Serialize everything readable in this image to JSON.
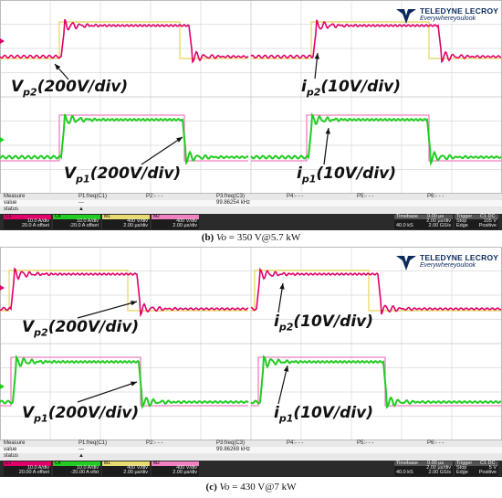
{
  "chart_data": [
    {
      "type": "line",
      "caption_label": "(b)",
      "caption_var": "Vo",
      "caption_rest": "= 350 V@5.7 kW",
      "series": [
        {
          "name": "Vp2(200V/div)",
          "color": "#e0006a"
        },
        {
          "name": "ip2(10V/div)",
          "color": "#e8dc70"
        },
        {
          "name": "Vp1(200V/div)",
          "color": "#22cc22"
        },
        {
          "name": "ip1(10V/div)",
          "color": "#f080c0"
        }
      ],
      "annotations": {
        "vp2": {
          "base": "V",
          "sub": "p2",
          "rest": "(200V/div)"
        },
        "ip2": {
          "base": "i",
          "sub": "p2",
          "rest": "(10V/div)"
        },
        "vp1": {
          "base": "V",
          "sub": "p1",
          "rest": "(200V/div)"
        },
        "ip1": {
          "base": "i",
          "sub": "p1",
          "rest": "(10V/div)"
        }
      },
      "measure": {
        "row_labels": [
          "Measure",
          "value",
          "status"
        ],
        "params": [
          "P1:freq(C1)",
          "P2:- - -",
          "P3:freq(C3)",
          "P4:- - -",
          "P5:- - -",
          "P6:- - -"
        ],
        "value_p1": "---",
        "value_p3": "99.86254 kHz",
        "status_mark": "▲"
      },
      "channels": [
        {
          "tag": "C1",
          "line1": "10.0 A/div",
          "line2": "20.0 A offset",
          "color": "#e0006a"
        },
        {
          "tag": "C4",
          "line1": "10.0 A/div",
          "line2": "-20.0 A offset",
          "color": "#22cc22"
        },
        {
          "tag": "M1",
          "line1": "400 V/div",
          "line2": "2.00 µs/div",
          "color": "#e8dc70"
        },
        {
          "tag": "M2",
          "line1": "400 V/div",
          "line2": "2.00 µs/div",
          "color": "#f080c0"
        }
      ],
      "timebase": {
        "title": "Timebase",
        "offset": "0.00 µs",
        "per_div": "2.00 µs/div",
        "samples": "40.0 kS",
        "rate": "2.00 GS/s"
      },
      "trigger": {
        "title": "Trigger",
        "coupling": "C1 DC",
        "mode": "Stop",
        "level": "105 V",
        "type": "Edge",
        "slope": "Positive"
      }
    },
    {
      "type": "line",
      "caption_label": "(c)",
      "caption_var": "Vo",
      "caption_rest": "= 430 V@7 kW",
      "series": [
        {
          "name": "Vp2(200V/div)",
          "color": "#e0006a"
        },
        {
          "name": "ip2(10V/div)",
          "color": "#e8dc70"
        },
        {
          "name": "Vp1(200V/div)",
          "color": "#22cc22"
        },
        {
          "name": "ip1(10V/div)",
          "color": "#f080c0"
        }
      ],
      "annotations": {
        "vp2": {
          "base": "V",
          "sub": "p2",
          "rest": "(200V/div)"
        },
        "ip2": {
          "base": "i",
          "sub": "p2",
          "rest": "(10V/div)"
        },
        "vp1": {
          "base": "V",
          "sub": "p1",
          "rest": "(200V/div)"
        },
        "ip1": {
          "base": "i",
          "sub": "p1",
          "rest": "(10V/div)"
        }
      },
      "measure": {
        "row_labels": [
          "Measure",
          "value",
          "status"
        ],
        "params": [
          "P1:freq(C1)",
          "P2:- - -",
          "P3:freq(C3)",
          "P4:- - -",
          "P5:- - -",
          "P6:- - -"
        ],
        "value_p1": "---",
        "value_p3": "99.86269 kHz",
        "status_mark": "▲"
      },
      "channels": [
        {
          "tag": "C1",
          "line1": "10.0 A/div",
          "line2": "20.00 A offset",
          "color": "#e0006a"
        },
        {
          "tag": "C4",
          "line1": "10.0 A/div",
          "line2": "-20.00 A ofst",
          "color": "#22cc22"
        },
        {
          "tag": "M1",
          "line1": "400 V/div",
          "line2": "2.00 µs/div",
          "color": "#e8dc70"
        },
        {
          "tag": "M2",
          "line1": "400 V/div",
          "line2": "2.00 µs/div",
          "color": "#f080c0"
        }
      ],
      "timebase": {
        "title": "Timebase",
        "offset": "0.00 µs",
        "per_div": "2.00 µs/div",
        "samples": "40.0 kS",
        "rate": "2.00 GS/s"
      },
      "trigger": {
        "title": "Trigger",
        "coupling": "C1 DC",
        "mode": "Stop",
        "level": "5 V",
        "type": "Edge",
        "slope": "Positive"
      }
    }
  ],
  "logo": {
    "name": "TELEDYNE LECROY",
    "tagline": "Everywhereyoulook"
  },
  "colors": {
    "grid": "#d8d8d8",
    "grid_center": "#c4c4c4",
    "vp2": "#e0006a",
    "vp1": "#22cc22",
    "ip2": "#e8dc70",
    "ip1": "#f080c0"
  }
}
